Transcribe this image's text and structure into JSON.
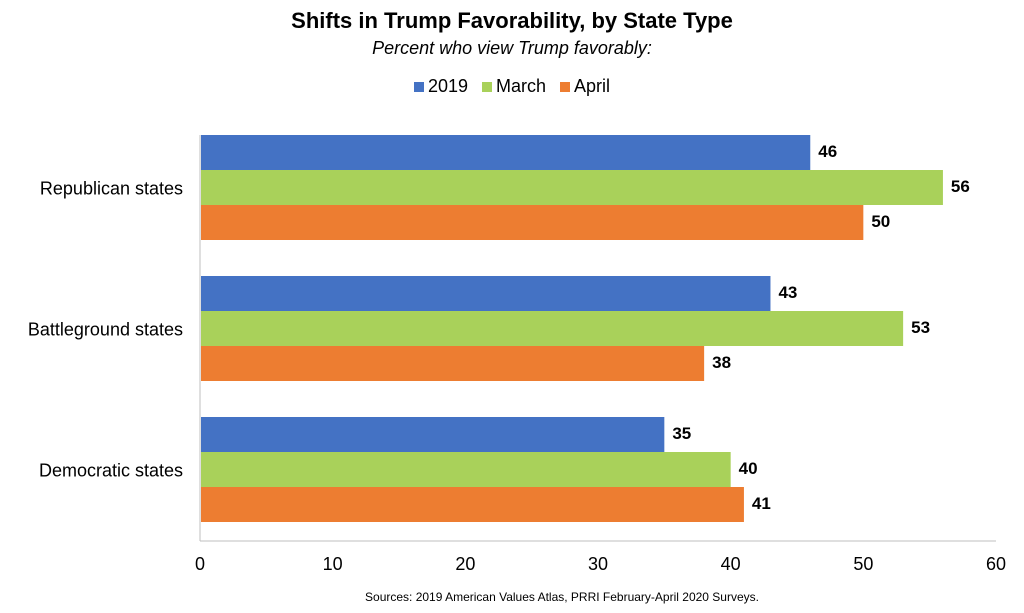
{
  "chart_data": {
    "type": "bar",
    "orientation": "horizontal",
    "title": "Shifts in Trump Favorability, by State Type",
    "subtitle": "Percent who view Trump favorably:",
    "categories": [
      "Republican states",
      "Battleground states",
      "Democratic states"
    ],
    "series": [
      {
        "name": "2019",
        "color": "#4472C4",
        "values": [
          46,
          43,
          35
        ]
      },
      {
        "name": "March",
        "color": "#A9D15A",
        "values": [
          56,
          53,
          40
        ]
      },
      {
        "name": "April",
        "color": "#ED7D31",
        "values": [
          50,
          38,
          41
        ]
      }
    ],
    "xlim": [
      0,
      60
    ],
    "xticks": [
      "0",
      "10",
      "20",
      "30",
      "40",
      "50",
      "60"
    ],
    "grid": false,
    "legend_position": "top",
    "source": "Sources: 2019 American Values Atlas, PRRI February-April 2020 Surveys."
  }
}
